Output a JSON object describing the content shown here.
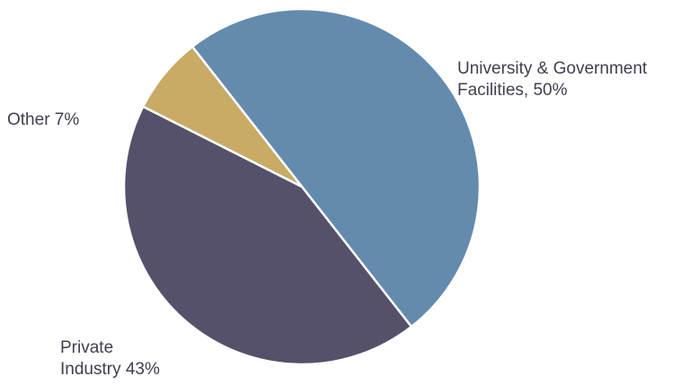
{
  "chart_data": {
    "type": "pie",
    "slices": [
      {
        "label": "University & Government\nFacilities, 50%",
        "value": 50,
        "color": "#648bae"
      },
      {
        "label": "Private\nIndustry 43%",
        "value": 43,
        "color": "#56516b"
      },
      {
        "label": "Other 7%",
        "value": 7,
        "color": "#c8ab65"
      }
    ]
  }
}
